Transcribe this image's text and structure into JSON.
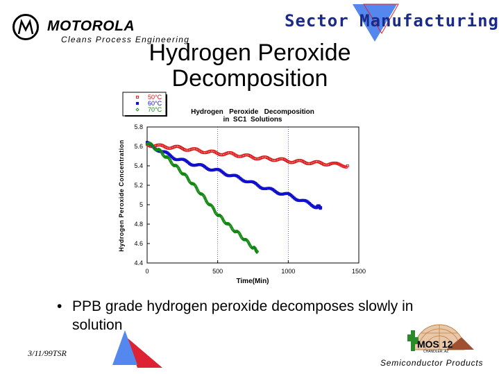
{
  "header": {
    "brand": "MOTOROLA",
    "department": "Cleans Process Engineering",
    "sector": "Sector Manufacturing"
  },
  "slide": {
    "title_line1": "Hydrogen Peroxide",
    "title_line2": "Decomposition",
    "bullet": "PPB grade hydrogen peroxide decomposes slowly in solution"
  },
  "footer": {
    "date": "3/11/99TSR",
    "division": "Semiconductor Products",
    "mos_label": "MOS 12",
    "mos_sublabel": "CHANDLER, AZ"
  },
  "colors": {
    "sector_text": "#1a2a8a",
    "series_50": "#dd1111",
    "series_60": "#1111cc",
    "series_70": "#118811",
    "triangle_blue": "#5588ee",
    "triangle_red": "#dd2233"
  },
  "chart_data": {
    "type": "scatter",
    "title": "Hydrogen   Peroxide   Decomposition",
    "subtitle": "in  SC1  Solutions",
    "xlabel": "Time(Min)",
    "ylabel": "Hydrogen Peroxide Concentration",
    "xlim": [
      0,
      1500
    ],
    "ylim": [
      4.4,
      5.8
    ],
    "xticks": [
      0,
      500,
      1000,
      1500
    ],
    "xtick_labels": [
      "0",
      "500",
      "1000",
      "1500"
    ],
    "yticks": [
      4.4,
      4.6,
      4.8,
      5,
      5.2,
      5.4,
      5.6,
      5.8
    ],
    "ytick_labels": [
      "4.4",
      "4.6",
      "4.8",
      "5",
      "5.2",
      "5.4",
      "5.6",
      "5.8"
    ],
    "grid": "vertical dotted at 500 and 1000",
    "legend": "top-left outside",
    "series": [
      {
        "name": "50°C",
        "marker": "square-open",
        "x": [
          0,
          100,
          200,
          300,
          400,
          500,
          600,
          700,
          800,
          900,
          1000,
          1100,
          1200,
          1300,
          1420
        ],
        "y": [
          5.62,
          5.6,
          5.59,
          5.57,
          5.55,
          5.53,
          5.52,
          5.5,
          5.48,
          5.47,
          5.45,
          5.44,
          5.43,
          5.42,
          5.4
        ]
      },
      {
        "name": "60°C",
        "marker": "square-filled",
        "x": [
          0,
          100,
          200,
          300,
          400,
          500,
          600,
          700,
          800,
          900,
          1000,
          1100,
          1200,
          1230
        ],
        "y": [
          5.63,
          5.55,
          5.48,
          5.43,
          5.39,
          5.35,
          5.3,
          5.25,
          5.19,
          5.14,
          5.1,
          5.04,
          4.98,
          4.97
        ]
      },
      {
        "name": "70°C",
        "marker": "diamond",
        "x": [
          0,
          50,
          100,
          150,
          200,
          250,
          300,
          350,
          400,
          450,
          500,
          550,
          600,
          650,
          700,
          750,
          780
        ],
        "y": [
          5.64,
          5.59,
          5.54,
          5.47,
          5.4,
          5.33,
          5.25,
          5.17,
          5.08,
          4.99,
          4.9,
          4.83,
          4.76,
          4.7,
          4.63,
          4.56,
          4.52
        ]
      }
    ]
  }
}
